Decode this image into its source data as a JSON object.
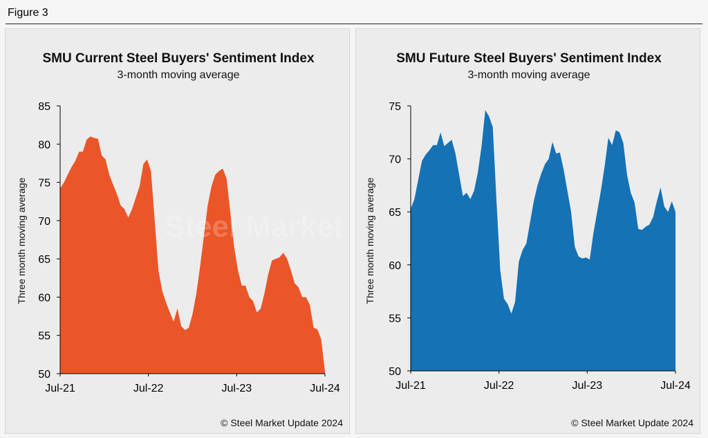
{
  "figure_label": "Figure 3",
  "watermark": "Steel Market Update",
  "chart_data": [
    {
      "type": "area",
      "title": "SMU Current Steel Buyers' Sentiment Index",
      "subtitle": "3-month moving average",
      "ylabel": "Three month moving average",
      "xlabel": "",
      "ylim": [
        50,
        85
      ],
      "yticks": [
        50,
        55,
        60,
        65,
        70,
        75,
        80,
        85
      ],
      "xticks": [
        "Jul-21",
        "Jul-22",
        "Jul-23",
        "Jul-24"
      ],
      "color": "#eb5628",
      "copyright": "© Steel Market Update 2024",
      "series": [
        {
          "values": [
            74.2,
            75.0,
            76.0,
            77.0,
            77.8,
            79.0,
            79.0,
            80.6,
            81.0,
            80.8,
            80.7,
            78.5,
            78.0,
            76.0,
            74.7,
            73.5,
            72.0,
            71.5,
            70.4,
            71.5,
            73.0,
            74.5,
            77.4,
            78.0,
            76.5,
            70.0,
            63.4,
            60.8,
            59.3,
            58.0,
            56.8,
            58.5,
            56.2,
            55.7,
            56.0,
            57.8,
            60.5,
            64.0,
            68.0,
            72.0,
            74.5,
            76.0,
            76.5,
            76.8,
            75.5,
            71.0,
            66.5,
            63.5,
            61.5,
            61.5,
            60.0,
            59.5,
            58.0,
            58.5,
            60.5,
            63.0,
            64.8,
            65.0,
            65.2,
            65.8,
            65.0,
            63.5,
            61.8,
            61.3,
            60.0,
            60.0,
            59.0,
            56.0,
            55.8,
            54.5,
            50.3
          ]
        }
      ]
    },
    {
      "type": "area",
      "title": "SMU Future Steel Buyers' Sentiment Index",
      "subtitle": "3-month moving average",
      "ylabel": "Three month moving average",
      "xlabel": "",
      "ylim": [
        50,
        75
      ],
      "yticks": [
        50,
        55,
        60,
        65,
        70,
        75
      ],
      "xticks": [
        "Jul-21",
        "Jul-22",
        "Jul-23",
        "Jul-24"
      ],
      "color": "#1572b5",
      "copyright": "© Steel Market Update 2024",
      "series": [
        {
          "values": [
            65.3,
            66.2,
            68.0,
            69.8,
            70.4,
            70.8,
            71.3,
            71.3,
            72.5,
            71.2,
            71.5,
            71.8,
            70.5,
            68.5,
            66.5,
            66.8,
            66.2,
            67.0,
            68.7,
            71.2,
            74.6,
            74.0,
            73.0,
            66.0,
            59.5,
            56.8,
            56.3,
            55.4,
            56.5,
            60.3,
            61.4,
            62.0,
            64.0,
            66.0,
            67.5,
            68.6,
            69.5,
            70.0,
            71.6,
            70.5,
            70.6,
            69.0,
            67.0,
            65.0,
            61.7,
            60.8,
            60.6,
            60.7,
            60.5,
            63.0,
            65.0,
            67.0,
            69.3,
            72.0,
            71.3,
            72.7,
            72.5,
            71.5,
            68.5,
            66.8,
            65.9,
            63.4,
            63.3,
            63.6,
            63.8,
            64.5,
            66.0,
            67.3,
            65.5,
            65.0,
            66.0,
            65.0
          ]
        }
      ]
    }
  ]
}
